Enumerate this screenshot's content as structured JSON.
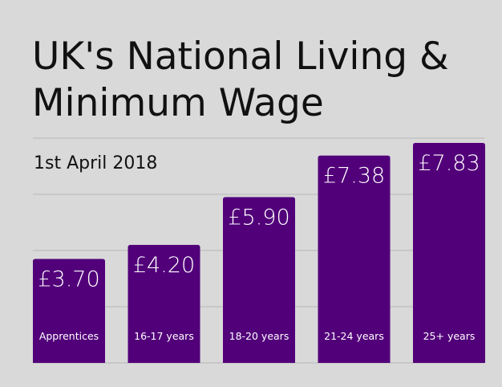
{
  "chart_data": {
    "type": "bar",
    "title": "UK's National Living & Minimum Wage",
    "subtitle": "1st April 2018",
    "categories": [
      "Apprentices",
      "16-17 years",
      "18-20 years",
      "21-24 years",
      "25+ years"
    ],
    "values": [
      3.7,
      4.2,
      5.9,
      7.38,
      7.83
    ],
    "value_labels": [
      "£3.70",
      "£4.20",
      "£5.90",
      "£7.38",
      "£7.83"
    ],
    "color": "#52007a",
    "ylim": [
      0,
      8
    ],
    "yticks": [
      0,
      2,
      4,
      6,
      8
    ],
    "grid": true
  }
}
